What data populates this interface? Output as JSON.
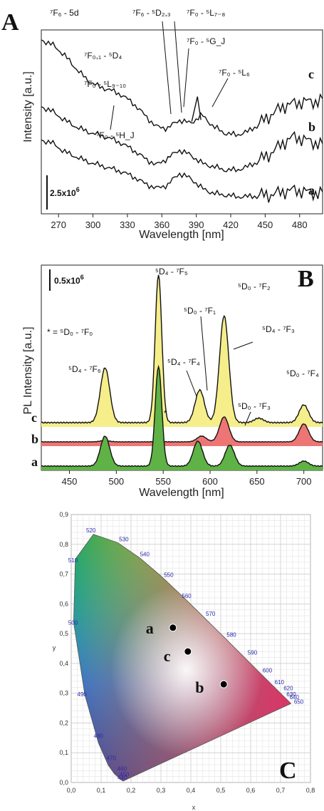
{
  "panelA": {
    "label": "A",
    "xlabel": "Wavelength [nm]",
    "ylabel": "Intensity [a.u.]",
    "scale_bar": "2.5x10",
    "scale_bar_exp": "6",
    "curve_labels": [
      "a",
      "b",
      "c"
    ],
    "annotations": [
      {
        "text": "⁷F₆ - 5d"
      },
      {
        "text": "⁷F₆ - ⁵D₂,₃"
      },
      {
        "text": "⁷F₀ - ⁵L₇₋₈"
      },
      {
        "text": "⁷F₀,₁ - ⁵D₄"
      },
      {
        "text": "⁷F₀ - ⁵G_J"
      },
      {
        "text": "⁷F₀ - ⁵L₉₋₁₀"
      },
      {
        "text": "⁷F₀ - ⁵L₆"
      },
      {
        "text": "⁷F₀ - ⁵H_J"
      }
    ]
  },
  "panelB": {
    "label": "B",
    "xlabel": "Wavelength [nm]",
    "ylabel": "PL Intensity [a.u.]",
    "scale_bar": "0.5x10",
    "scale_bar_exp": "6",
    "footnote": "* = ⁵D₀ - ⁷F₀",
    "star": "*",
    "curve_labels": [
      "c",
      "b",
      "a"
    ],
    "annotations": [
      {
        "text": "⁵D₄ - ⁷F₅"
      },
      {
        "text": "⁵D₀ - ⁷F₁"
      },
      {
        "text": "⁵D₀ - ⁷F₂"
      },
      {
        "text": "⁵D₄ - ⁷F₆"
      },
      {
        "text": "⁵D₄ - ⁷F₄"
      },
      {
        "text": "⁵D₄ - ⁷F₃"
      },
      {
        "text": "⁵D₀ - ⁷F₃"
      },
      {
        "text": "⁵D₀ - ⁷F₄"
      }
    ]
  },
  "panelC": {
    "label": "C",
    "xlabel": "x",
    "ylabel": "y",
    "points": [
      {
        "label": "a",
        "x": 0.34,
        "y": 0.52
      },
      {
        "label": "c",
        "x": 0.39,
        "y": 0.44
      },
      {
        "label": "b",
        "x": 0.51,
        "y": 0.33
      }
    ]
  },
  "chart_data": [
    {
      "type": "line",
      "xlabel": "Wavelength [nm]",
      "ylabel": "Intensity [a.u.]",
      "xlim": [
        255,
        500
      ],
      "x_ticks": [
        270,
        300,
        330,
        360,
        390,
        420,
        450,
        480
      ],
      "x": [
        255,
        265,
        275,
        285,
        295,
        305,
        315,
        325,
        335,
        345,
        355,
        365,
        375,
        385,
        395,
        405,
        415,
        425,
        435,
        445,
        455,
        465,
        475,
        485,
        495,
        500
      ],
      "series": [
        {
          "name": "a",
          "values": [
            0.4,
            0.38,
            0.33,
            0.3,
            0.27,
            0.25,
            0.23,
            0.21,
            0.18,
            0.14,
            0.11,
            0.13,
            0.2,
            0.17,
            0.11,
            0.08,
            0.07,
            0.06,
            0.06,
            0.07,
            0.07,
            0.09,
            0.1,
            0.09,
            0.08,
            0.08
          ]
        },
        {
          "name": "b",
          "values": [
            0.6,
            0.57,
            0.52,
            0.48,
            0.45,
            0.43,
            0.41,
            0.38,
            0.34,
            0.29,
            0.25,
            0.29,
            0.34,
            0.31,
            0.26,
            0.24,
            0.22,
            0.22,
            0.24,
            0.28,
            0.32,
            0.38,
            0.42,
            0.4,
            0.38,
            0.37
          ]
        },
        {
          "name": "c",
          "values": [
            1.0,
            0.97,
            0.91,
            0.83,
            0.76,
            0.72,
            0.7,
            0.67,
            0.62,
            0.55,
            0.48,
            0.47,
            0.52,
            0.5,
            0.55,
            0.48,
            0.44,
            0.43,
            0.45,
            0.5,
            0.55,
            0.6,
            0.62,
            0.63,
            0.63,
            0.64
          ]
        }
      ]
    },
    {
      "type": "line",
      "xlabel": "Wavelength [nm]",
      "ylabel": "PL Intensity [a.u.]",
      "xlim": [
        420,
        720
      ],
      "x_ticks": [
        450,
        500,
        550,
        600,
        650,
        700
      ],
      "series": [
        {
          "name": "c",
          "fill": "#f5ee8a",
          "peaks": [
            [
              488,
              0.37
            ],
            [
              545,
              1.0
            ],
            [
              589,
              0.22
            ],
            [
              615,
              0.72
            ],
            [
              652,
              0.03
            ],
            [
              700,
              0.12
            ]
          ]
        },
        {
          "name": "b",
          "fill": "#ee7575",
          "peaks": [
            [
              488,
              0.02
            ],
            [
              545,
              0.02
            ],
            [
              591,
              0.09
            ],
            [
              615,
              0.39
            ],
            [
              700,
              0.28
            ]
          ]
        },
        {
          "name": "a",
          "fill": "#5fb246",
          "peaks": [
            [
              488,
              0.3
            ],
            [
              545,
              1.0
            ],
            [
              587,
              0.25
            ],
            [
              621,
              0.21
            ],
            [
              700,
              0.05
            ]
          ]
        }
      ]
    },
    {
      "type": "scatter",
      "xlabel": "x",
      "ylabel": "y",
      "xlim": [
        0,
        0.8
      ],
      "ylim": [
        0,
        0.9
      ],
      "x_ticks": [
        "0,0",
        "0,1",
        "0,2",
        "0,3",
        "0,4",
        "0,5",
        "0,6",
        "0,7",
        "0,8"
      ],
      "y_ticks": [
        "0,0",
        "0,1",
        "0,2",
        "0,3",
        "0,4",
        "0,5",
        "0,6",
        "0,7",
        "0,8",
        "0,9"
      ],
      "wavelength_labels": [
        "440",
        "450",
        "460",
        "470",
        "480",
        "490",
        "500",
        "510",
        "520",
        "530",
        "540",
        "550",
        "560",
        "570",
        "580",
        "590",
        "600",
        "610",
        "620",
        "630",
        "640",
        "650"
      ],
      "points": [
        {
          "label": "a",
          "x": 0.34,
          "y": 0.52
        },
        {
          "label": "c",
          "x": 0.39,
          "y": 0.44
        },
        {
          "label": "b",
          "x": 0.51,
          "y": 0.33
        }
      ]
    }
  ]
}
